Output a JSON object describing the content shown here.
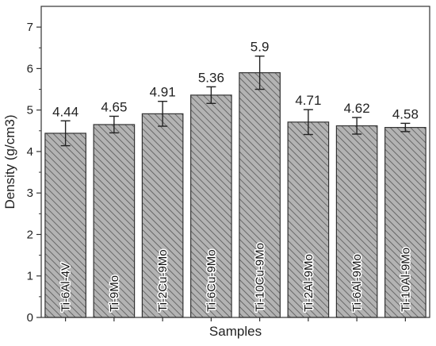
{
  "chart_data": {
    "type": "bar",
    "title": "",
    "xlabel": "Samples",
    "ylabel": "Density (g/cm3)",
    "ylim": [
      0,
      7.5
    ],
    "yticks": [
      0,
      1,
      2,
      3,
      4,
      5,
      6,
      7
    ],
    "grid": false,
    "legend": "none",
    "categories": [
      "Ti-6Al-4V",
      "Ti-9Mo",
      "Ti-2Cu-9Mo",
      "Ti-6Cu-9Mo",
      "Ti-10Cu-9Mo",
      "Ti-2Al-9Mo",
      "Ti-6Al-9Mo",
      "Ti-10Al-9Mo"
    ],
    "values": [
      4.44,
      4.65,
      4.91,
      5.36,
      5.9,
      4.71,
      4.62,
      4.58
    ],
    "value_labels": [
      "4.44",
      "4.65",
      "4.91",
      "5.36",
      "5.9",
      "4.71",
      "4.62",
      "4.58"
    ],
    "errors": [
      0.3,
      0.2,
      0.3,
      0.2,
      0.4,
      0.3,
      0.2,
      0.1
    ],
    "bar_fill": "#b3b3b3",
    "hatch_color": "#555555",
    "edge_color": "#333333"
  }
}
